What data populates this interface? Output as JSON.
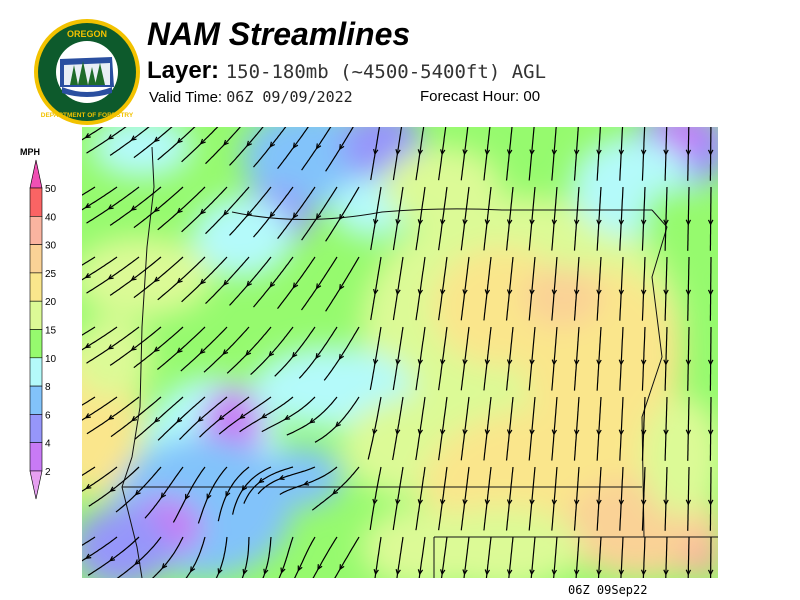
{
  "header": {
    "title": "NAM Streamlines",
    "layer_label": "Layer:",
    "layer_value": "150-180mb (~4500-5400ft) AGL",
    "valid_label": "Valid Time:",
    "valid_value": "06Z 09/09/2022",
    "forecast_label": "Forecast Hour:",
    "forecast_value": "00"
  },
  "logo": {
    "text_top": "OREGON",
    "text_bottom": "DEPARTMENT OF FORESTRY"
  },
  "legend": {
    "unit": "MPH",
    "levels": [
      "2",
      "4",
      "6",
      "8",
      "10",
      "15",
      "20",
      "25",
      "30",
      "40",
      "50"
    ],
    "colors": [
      "#e6a0f0",
      "#c87af5",
      "#9696fa",
      "#82c3fa",
      "#b4fafa",
      "#96fa6e",
      "#dcfa96",
      "#fae68c",
      "#fad296",
      "#fab4a0",
      "#fa6464",
      "#f050b4"
    ]
  },
  "footer": {
    "stamp": "06Z 09Sep22"
  }
}
